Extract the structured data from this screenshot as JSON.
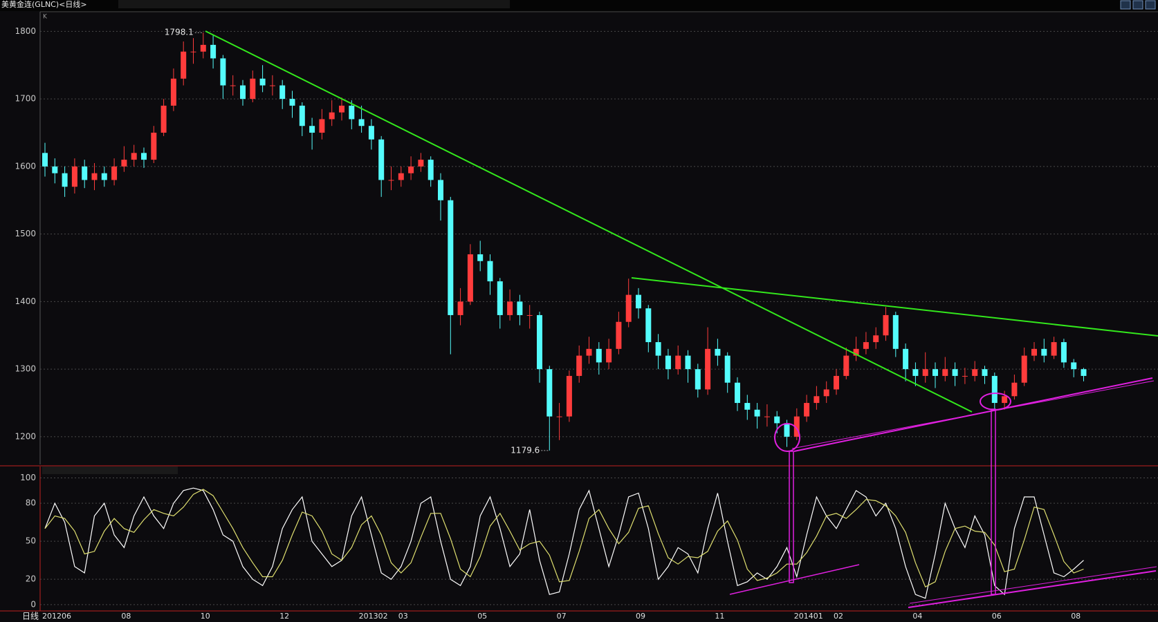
{
  "chart_data": [
    {
      "type": "candlestick",
      "title": "美黄金连(GLNC)<日线>",
      "pane_label": "K",
      "up_color": "#ff3c3c",
      "down_color": "#54fcfc",
      "ylim": [
        1159,
        1829
      ],
      "yticks": [
        1200,
        1300,
        1400,
        1500,
        1600,
        1700,
        1800
      ],
      "grid": true,
      "open": [
        1620,
        1600,
        1590,
        1570,
        1600,
        1580,
        1590,
        1580,
        1600,
        1610,
        1620,
        1610,
        1650,
        1690,
        1730,
        1770,
        1770,
        1780,
        1760,
        1720,
        1720,
        1700,
        1730,
        1720,
        1720,
        1700,
        1690,
        1660,
        1650,
        1670,
        1680,
        1690,
        1670,
        1660,
        1640,
        1580,
        1580,
        1590,
        1600,
        1610,
        1580,
        1550,
        1380,
        1400,
        1470,
        1460,
        1430,
        1380,
        1400,
        1380,
        1380,
        1300,
        1230,
        1230,
        1290,
        1320,
        1330,
        1310,
        1330,
        1370,
        1410,
        1390,
        1340,
        1320,
        1300,
        1320,
        1300,
        1270,
        1330,
        1320,
        1280,
        1250,
        1240,
        1230,
        1230,
        1220,
        1200,
        1230,
        1250,
        1260,
        1270,
        1290,
        1320,
        1330,
        1340,
        1350,
        1380,
        1330,
        1300,
        1290,
        1300,
        1290,
        1300,
        1290,
        1290,
        1300,
        1290,
        1250,
        1260,
        1280,
        1320,
        1330,
        1320,
        1340,
        1310,
        1300
      ],
      "high": [
        1635,
        1612,
        1600,
        1612,
        1610,
        1605,
        1600,
        1612,
        1630,
        1632,
        1628,
        1660,
        1700,
        1745,
        1785,
        1790,
        1798.1,
        1795,
        1765,
        1735,
        1728,
        1742,
        1750,
        1735,
        1728,
        1712,
        1695,
        1672,
        1685,
        1698,
        1702,
        1698,
        1690,
        1670,
        1645,
        1600,
        1600,
        1615,
        1620,
        1615,
        1590,
        1555,
        1420,
        1485,
        1490,
        1470,
        1435,
        1418,
        1410,
        1395,
        1385,
        1305,
        1250,
        1298,
        1335,
        1348,
        1340,
        1345,
        1385,
        1434,
        1420,
        1395,
        1352,
        1330,
        1335,
        1328,
        1308,
        1362,
        1345,
        1325,
        1288,
        1262,
        1250,
        1248,
        1238,
        1225,
        1242,
        1262,
        1275,
        1282,
        1300,
        1332,
        1348,
        1355,
        1362,
        1392,
        1385,
        1338,
        1310,
        1325,
        1310,
        1318,
        1310,
        1302,
        1312,
        1305,
        1295,
        1268,
        1292,
        1332,
        1340,
        1345,
        1348,
        1345,
        1315,
        1302
      ],
      "low": [
        1585,
        1575,
        1555,
        1560,
        1568,
        1565,
        1570,
        1572,
        1592,
        1600,
        1598,
        1605,
        1645,
        1682,
        1720,
        1752,
        1760,
        1745,
        1700,
        1705,
        1690,
        1695,
        1710,
        1705,
        1685,
        1672,
        1645,
        1625,
        1640,
        1660,
        1668,
        1655,
        1650,
        1625,
        1555,
        1565,
        1570,
        1580,
        1592,
        1570,
        1520,
        1322,
        1365,
        1395,
        1445,
        1410,
        1360,
        1372,
        1365,
        1360,
        1280,
        1179.6,
        1195,
        1222,
        1280,
        1308,
        1292,
        1300,
        1322,
        1362,
        1375,
        1325,
        1300,
        1285,
        1292,
        1280,
        1258,
        1262,
        1305,
        1265,
        1238,
        1225,
        1212,
        1215,
        1205,
        1185,
        1195,
        1222,
        1240,
        1250,
        1262,
        1285,
        1312,
        1322,
        1330,
        1342,
        1318,
        1282,
        1275,
        1280,
        1272,
        1282,
        1275,
        1278,
        1282,
        1278,
        1240,
        1240,
        1255,
        1275,
        1312,
        1310,
        1315,
        1302,
        1288,
        1282
      ],
      "close": [
        1600,
        1590,
        1570,
        1600,
        1580,
        1590,
        1580,
        1600,
        1610,
        1620,
        1610,
        1650,
        1690,
        1730,
        1770,
        1770,
        1780,
        1760,
        1720,
        1720,
        1700,
        1730,
        1720,
        1720,
        1700,
        1690,
        1660,
        1650,
        1670,
        1680,
        1690,
        1670,
        1660,
        1640,
        1580,
        1580,
        1590,
        1600,
        1610,
        1580,
        1550,
        1380,
        1400,
        1470,
        1460,
        1430,
        1380,
        1400,
        1380,
        1380,
        1300,
        1230,
        1230,
        1290,
        1320,
        1330,
        1310,
        1330,
        1370,
        1410,
        1390,
        1340,
        1320,
        1300,
        1320,
        1300,
        1270,
        1330,
        1320,
        1280,
        1250,
        1240,
        1230,
        1230,
        1220,
        1200,
        1230,
        1250,
        1260,
        1270,
        1290,
        1320,
        1330,
        1340,
        1350,
        1380,
        1330,
        1300,
        1290,
        1300,
        1290,
        1300,
        1290,
        1290,
        1300,
        1290,
        1250,
        1260,
        1280,
        1320,
        1330,
        1320,
        1340,
        1310,
        1300,
        1290
      ]
    },
    {
      "type": "line",
      "xlabel": "日线",
      "categories": [
        "201206",
        null,
        null,
        null,
        null,
        null,
        null,
        null,
        "08",
        null,
        null,
        null,
        null,
        null,
        null,
        null,
        "10",
        null,
        null,
        null,
        null,
        null,
        null,
        null,
        "12",
        null,
        null,
        null,
        null,
        null,
        null,
        null,
        "201302",
        null,
        null,
        null,
        "03",
        null,
        null,
        null,
        null,
        null,
        null,
        null,
        "05",
        null,
        null,
        null,
        null,
        null,
        null,
        null,
        "07",
        null,
        null,
        null,
        null,
        null,
        null,
        null,
        "09",
        null,
        null,
        null,
        null,
        null,
        null,
        null,
        "11",
        null,
        null,
        null,
        null,
        null,
        null,
        null,
        "201401",
        null,
        null,
        null,
        "02",
        null,
        null,
        null,
        null,
        null,
        null,
        null,
        "04",
        null,
        null,
        null,
        null,
        null,
        null,
        null,
        "06",
        null,
        null,
        null,
        null,
        null,
        null,
        null,
        "08",
        null
      ],
      "ylim": [
        -5,
        109
      ],
      "yticks": [
        0,
        20,
        50,
        80,
        100
      ],
      "grid": true,
      "series": [
        {
          "color": "#ffffff",
          "values": [
            60,
            80,
            65,
            30,
            25,
            70,
            80,
            55,
            45,
            70,
            85,
            70,
            60,
            80,
            90,
            92,
            90,
            75,
            55,
            50,
            30,
            20,
            15,
            30,
            60,
            75,
            85,
            50,
            40,
            30,
            35,
            70,
            85,
            55,
            25,
            20,
            30,
            50,
            80,
            85,
            50,
            20,
            15,
            30,
            70,
            85,
            60,
            30,
            40,
            75,
            35,
            8,
            10,
            40,
            75,
            90,
            60,
            30,
            55,
            85,
            88,
            60,
            20,
            30,
            45,
            40,
            25,
            60,
            88,
            50,
            15,
            18,
            25,
            20,
            30,
            45,
            22,
            55,
            85,
            70,
            60,
            75,
            90,
            85,
            70,
            80,
            60,
            30,
            8,
            5,
            40,
            80,
            60,
            45,
            70,
            55,
            15,
            8,
            60,
            85,
            85,
            55,
            25,
            22,
            28,
            35
          ]
        },
        {
          "color": "#e0e070",
          "values": [
            60,
            70,
            68,
            58,
            40,
            42,
            58,
            68,
            60,
            57,
            67,
            75,
            72,
            70,
            77,
            87,
            91,
            86,
            73,
            60,
            45,
            33,
            22,
            22,
            35,
            55,
            73,
            70,
            58,
            40,
            35,
            45,
            63,
            70,
            55,
            33,
            25,
            33,
            53,
            72,
            72,
            52,
            28,
            22,
            38,
            62,
            72,
            58,
            43,
            48,
            50,
            39,
            18,
            19,
            42,
            68,
            75,
            60,
            48,
            57,
            76,
            78,
            56,
            37,
            32,
            38,
            37,
            42,
            58,
            66,
            51,
            28,
            19,
            21,
            25,
            32,
            32,
            41,
            54,
            70,
            72,
            68,
            75,
            83,
            82,
            78,
            70,
            57,
            33,
            14,
            18,
            42,
            60,
            62,
            58,
            57,
            47,
            26,
            28,
            51,
            77,
            75,
            55,
            34,
            25,
            28
          ]
        }
      ]
    }
  ]
}
